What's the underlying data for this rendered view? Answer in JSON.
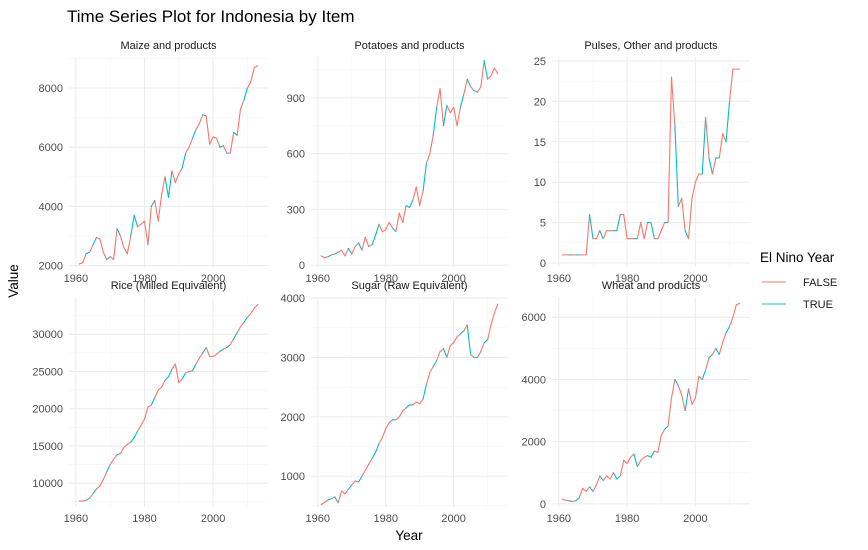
{
  "chart_data": {
    "type": "line",
    "title": "Time Series Plot for Indonesia by Item",
    "xlabel": "Year",
    "ylabel": "Value",
    "legend": {
      "title": "El Nino Year",
      "position": "right",
      "entries": [
        {
          "label": "FALSE",
          "color": "#F8766D"
        },
        {
          "label": "TRUE",
          "color": "#00BFC4"
        }
      ]
    },
    "el_nino_years": [
      1963,
      1965,
      1969,
      1972,
      1976,
      1977,
      1982,
      1986,
      1987,
      1991,
      1994,
      1997,
      2002,
      2004,
      2006,
      2009
    ],
    "xlim": [
      1958,
      2016
    ],
    "x_ticks": [
      1960,
      1980,
      2000
    ],
    "grid": true,
    "panels": [
      {
        "title": "Maize and products",
        "ylim": [
          1950,
          9050
        ],
        "y_ticks": [
          2000,
          4000,
          6000,
          8000
        ],
        "x": [
          1961,
          1962,
          1963,
          1964,
          1965,
          1966,
          1967,
          1968,
          1969,
          1970,
          1971,
          1972,
          1973,
          1974,
          1975,
          1976,
          1977,
          1978,
          1979,
          1980,
          1981,
          1982,
          1983,
          1984,
          1985,
          1986,
          1987,
          1988,
          1989,
          1990,
          1991,
          1992,
          1993,
          1994,
          1995,
          1996,
          1997,
          1998,
          1999,
          2000,
          2001,
          2002,
          2003,
          2004,
          2005,
          2006,
          2007,
          2008,
          2009,
          2010,
          2011,
          2012,
          2013
        ],
        "y": [
          2050,
          2100,
          2400,
          2450,
          2700,
          2950,
          2900,
          2450,
          2200,
          2300,
          2200,
          3250,
          3000,
          2600,
          2400,
          3000,
          3700,
          3300,
          3400,
          3500,
          2700,
          4000,
          4200,
          3500,
          4400,
          5000,
          4300,
          5200,
          4800,
          5100,
          5300,
          5800,
          6000,
          6300,
          6600,
          6800,
          7100,
          7050,
          6100,
          6350,
          6300,
          6000,
          6050,
          5800,
          5800,
          6500,
          6400,
          7300,
          7600,
          8000,
          8200,
          8700,
          8750
        ]
      },
      {
        "title": "Potatoes and products",
        "ylim": [
          -10,
          1120
        ],
        "y_ticks": [
          0,
          300,
          600,
          900
        ],
        "x": [
          1961,
          1962,
          1963,
          1964,
          1965,
          1966,
          1967,
          1968,
          1969,
          1970,
          1971,
          1972,
          1973,
          1974,
          1975,
          1976,
          1977,
          1978,
          1979,
          1980,
          1981,
          1982,
          1983,
          1984,
          1985,
          1986,
          1987,
          1988,
          1989,
          1990,
          1991,
          1992,
          1993,
          1994,
          1995,
          1996,
          1997,
          1998,
          1999,
          2000,
          2001,
          2002,
          2003,
          2004,
          2005,
          2006,
          2007,
          2008,
          2009,
          2010,
          2011,
          2012,
          2013
        ],
        "y": [
          50,
          40,
          45,
          55,
          60,
          70,
          80,
          50,
          90,
          60,
          100,
          120,
          80,
          150,
          100,
          110,
          160,
          220,
          180,
          190,
          230,
          200,
          180,
          280,
          230,
          320,
          310,
          350,
          420,
          320,
          400,
          550,
          600,
          700,
          850,
          950,
          750,
          860,
          820,
          850,
          750,
          850,
          920,
          1000,
          960,
          940,
          930,
          960,
          1100,
          1000,
          1020,
          1060,
          1030
        ]
      },
      {
        "title": "Pulses, Other and products",
        "ylim": [
          -0.5,
          25.5
        ],
        "y_ticks": [
          0,
          5,
          10,
          15,
          20,
          25
        ],
        "x": [
          1961,
          1962,
          1963,
          1964,
          1965,
          1966,
          1967,
          1968,
          1969,
          1970,
          1971,
          1972,
          1973,
          1974,
          1975,
          1976,
          1977,
          1978,
          1979,
          1980,
          1981,
          1982,
          1983,
          1984,
          1985,
          1986,
          1987,
          1988,
          1989,
          1990,
          1991,
          1992,
          1993,
          1994,
          1995,
          1996,
          1997,
          1998,
          1999,
          2000,
          2001,
          2002,
          2003,
          2004,
          2005,
          2006,
          2007,
          2008,
          2009,
          2010,
          2011,
          2012,
          2013
        ],
        "y": [
          1,
          1,
          1,
          1,
          1,
          1,
          1,
          1,
          6,
          3,
          3,
          4,
          3,
          4,
          4,
          4,
          4,
          6,
          6,
          3,
          3,
          3,
          3,
          5,
          3,
          5,
          5,
          3,
          3,
          4,
          5,
          5,
          23,
          17,
          7,
          8,
          4,
          3,
          8,
          10,
          11,
          11,
          18,
          13,
          11,
          13,
          13,
          16,
          15,
          20,
          24,
          24,
          24
        ]
      },
      {
        "title": "Rice (Milled Equivalent)",
        "ylim": [
          6800,
          35000
        ],
        "y_ticks": [
          10000,
          15000,
          20000,
          25000,
          30000
        ],
        "x": [
          1961,
          1962,
          1963,
          1964,
          1965,
          1966,
          1967,
          1968,
          1969,
          1970,
          1971,
          1972,
          1973,
          1974,
          1975,
          1976,
          1977,
          1978,
          1979,
          1980,
          1981,
          1982,
          1983,
          1984,
          1985,
          1986,
          1987,
          1988,
          1989,
          1990,
          1991,
          1992,
          1993,
          1994,
          1995,
          1996,
          1997,
          1998,
          1999,
          2000,
          2001,
          2002,
          2003,
          2004,
          2005,
          2006,
          2007,
          2008,
          2009,
          2010,
          2011,
          2012,
          2013
        ],
        "y": [
          7600,
          7600,
          7700,
          8000,
          8600,
          9200,
          9600,
          10500,
          11500,
          12500,
          13200,
          13800,
          14000,
          14800,
          15200,
          15500,
          16100,
          17000,
          17800,
          18600,
          20200,
          20500,
          21500,
          22500,
          22900,
          23800,
          24300,
          25300,
          26000,
          23500,
          24000,
          24800,
          25000,
          25100,
          26000,
          26800,
          27500,
          28200,
          27000,
          27000,
          27300,
          27700,
          28000,
          28200,
          28600,
          29400,
          30200,
          31000,
          31600,
          32300,
          32800,
          33500,
          34000
        ]
      },
      {
        "title": "Sugar (Raw Equivalent)",
        "ylim": [
          480,
          4020
        ],
        "y_ticks": [
          1000,
          2000,
          3000,
          4000
        ],
        "x": [
          1961,
          1962,
          1963,
          1964,
          1965,
          1966,
          1967,
          1968,
          1969,
          1970,
          1971,
          1972,
          1973,
          1974,
          1975,
          1976,
          1977,
          1978,
          1979,
          1980,
          1981,
          1982,
          1983,
          1984,
          1985,
          1986,
          1987,
          1988,
          1989,
          1990,
          1991,
          1992,
          1993,
          1994,
          1995,
          1996,
          1997,
          1998,
          1999,
          2000,
          2001,
          2002,
          2003,
          2004,
          2005,
          2006,
          2007,
          2008,
          2009,
          2010,
          2011,
          2012,
          2013
        ],
        "y": [
          520,
          560,
          600,
          620,
          650,
          550,
          750,
          700,
          780,
          850,
          920,
          900,
          1000,
          1100,
          1200,
          1300,
          1400,
          1550,
          1650,
          1800,
          1900,
          1950,
          1950,
          2000,
          2100,
          2150,
          2200,
          2200,
          2250,
          2220,
          2300,
          2550,
          2750,
          2850,
          2950,
          3100,
          3150,
          3000,
          3200,
          3250,
          3350,
          3400,
          3450,
          3550,
          3050,
          3000,
          3000,
          3100,
          3250,
          3300,
          3550,
          3750,
          3900
        ]
      },
      {
        "title": "Wheat and products",
        "ylim": [
          -100,
          6650
        ],
        "y_ticks": [
          0,
          2000,
          4000,
          6000
        ],
        "x": [
          1961,
          1962,
          1963,
          1964,
          1965,
          1966,
          1967,
          1968,
          1969,
          1970,
          1971,
          1972,
          1973,
          1974,
          1975,
          1976,
          1977,
          1978,
          1979,
          1980,
          1981,
          1982,
          1983,
          1984,
          1985,
          1986,
          1987,
          1988,
          1989,
          1990,
          1991,
          1992,
          1993,
          1994,
          1995,
          1996,
          1997,
          1998,
          1999,
          2000,
          2001,
          2002,
          2003,
          2004,
          2005,
          2006,
          2007,
          2008,
          2009,
          2010,
          2011,
          2012,
          2013
        ],
        "y": [
          150,
          120,
          100,
          80,
          100,
          200,
          500,
          400,
          550,
          400,
          600,
          900,
          750,
          900,
          800,
          1000,
          800,
          900,
          1400,
          1300,
          1500,
          1600,
          1200,
          1400,
          1500,
          1550,
          1500,
          1700,
          1650,
          2200,
          2400,
          2500,
          3400,
          4000,
          3800,
          3500,
          3000,
          3700,
          3200,
          3400,
          4100,
          4000,
          4300,
          4700,
          4800,
          5000,
          4800,
          5200,
          5500,
          5700,
          6000,
          6400,
          6450
        ]
      }
    ]
  }
}
